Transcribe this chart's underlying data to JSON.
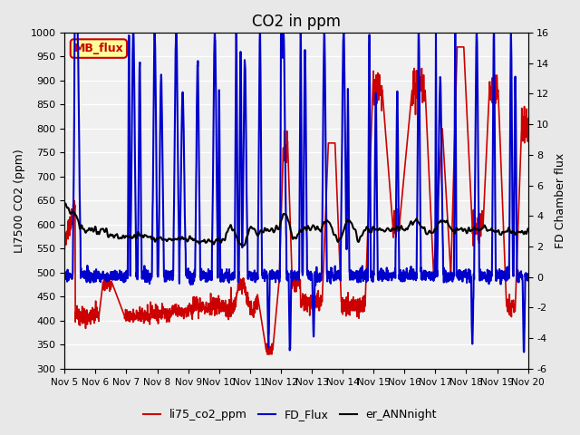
{
  "title": "CO2 in ppm",
  "ylabel_left": "LI7500 CO2 (ppm)",
  "ylabel_right": "FD Chamber flux",
  "xlabel": "",
  "ylim_left": [
    300,
    1000
  ],
  "ylim_right": [
    -6,
    16
  ],
  "yticks_left": [
    300,
    350,
    400,
    450,
    500,
    550,
    600,
    650,
    700,
    750,
    800,
    850,
    900,
    950,
    1000
  ],
  "yticks_right": [
    -6,
    -4,
    -2,
    0,
    2,
    4,
    6,
    8,
    10,
    12,
    14,
    16
  ],
  "xtick_labels": [
    "Nov 5",
    "Nov 6",
    "Nov 7",
    "Nov 8",
    "Nov 9",
    "Nov 10",
    "Nov 11",
    "Nov 12",
    "Nov 13",
    "Nov 14",
    "Nov 15",
    "Nov 16",
    "Nov 17",
    "Nov 18",
    "Nov 19",
    "Nov 20"
  ],
  "line_colors": {
    "li75_co2_ppm": "#cc0000",
    "FD_Flux": "#0000cc",
    "er_ANNnight": "#000000"
  },
  "line_widths": {
    "li75_co2_ppm": 1.2,
    "FD_Flux": 1.5,
    "er_ANNnight": 1.5
  },
  "legend_labels": [
    "li75_co2_ppm",
    "FD_Flux",
    "er_ANNnight"
  ],
  "annotation_text": "MB_flux",
  "annotation_color": "#cc0000",
  "annotation_bg": "#ffff99",
  "background_color": "#e8e8e8",
  "plot_bg_color": "#f0f0f0",
  "grid_color": "#ffffff",
  "title_fontsize": 12
}
